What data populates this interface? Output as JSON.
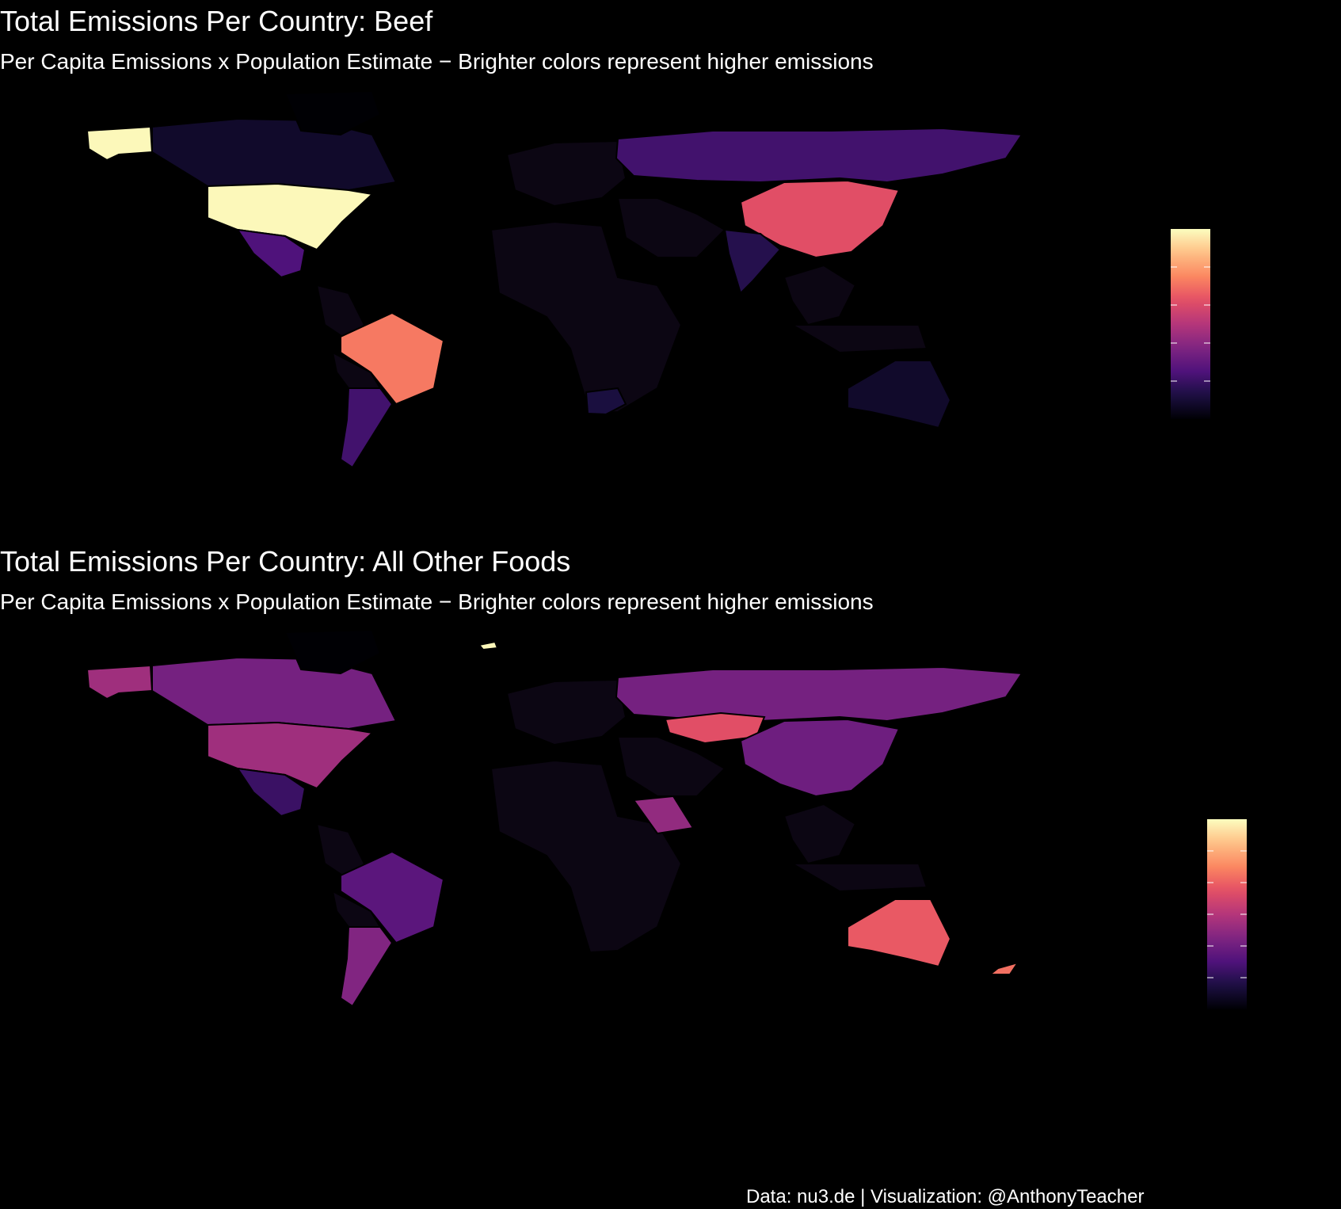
{
  "panels": [
    {
      "title": "Total Emissions Per Country: Beef",
      "subtitle": "Per Capita Emissions x Population Estimate − Brighter colors represent higher emissions",
      "legend": {
        "scale": "magma",
        "direction": "low-bottom-high-top",
        "tick_count": 4
      },
      "regions": [
        {
          "name": "Alaska (USA)",
          "level": 0.99
        },
        {
          "name": "Canada",
          "level": 0.08
        },
        {
          "name": "Greenland",
          "level": 0.0
        },
        {
          "name": "United States",
          "level": 0.99
        },
        {
          "name": "Mexico",
          "level": 0.25
        },
        {
          "name": "Brazil",
          "level": 0.72
        },
        {
          "name": "Argentina",
          "level": 0.22
        },
        {
          "name": "Russia",
          "level": 0.22
        },
        {
          "name": "China",
          "level": 0.62
        },
        {
          "name": "India",
          "level": 0.15
        },
        {
          "name": "Australia",
          "level": 0.08
        },
        {
          "name": "South Africa",
          "level": 0.12
        }
      ]
    },
    {
      "title": "Total Emissions Per Country: All Other Foods",
      "subtitle": "Per Capita Emissions x Population Estimate − Brighter colors represent higher emissions",
      "legend": {
        "scale": "magma",
        "direction": "low-bottom-high-top",
        "tick_count": 5
      },
      "regions": [
        {
          "name": "Alaska (USA)",
          "level": 0.45
        },
        {
          "name": "Canada",
          "level": 0.35
        },
        {
          "name": "Greenland",
          "level": 0.0
        },
        {
          "name": "United States",
          "level": 0.45
        },
        {
          "name": "Mexico",
          "level": 0.2
        },
        {
          "name": "Brazil",
          "level": 0.28
        },
        {
          "name": "Argentina",
          "level": 0.38
        },
        {
          "name": "Russia",
          "level": 0.35
        },
        {
          "name": "Kazakhstan",
          "level": 0.62
        },
        {
          "name": "China",
          "level": 0.33
        },
        {
          "name": "Saudi Arabia",
          "level": 0.42
        },
        {
          "name": "Australia",
          "level": 0.65
        },
        {
          "name": "New Zealand",
          "level": 0.7
        },
        {
          "name": "Iceland",
          "level": 0.99
        }
      ]
    }
  ],
  "caption": "Data: nu3.de | Visualization: @AnthonyTeacher",
  "colors": {
    "background": "#000000",
    "text": "#ffffff",
    "border": "#000000"
  }
}
